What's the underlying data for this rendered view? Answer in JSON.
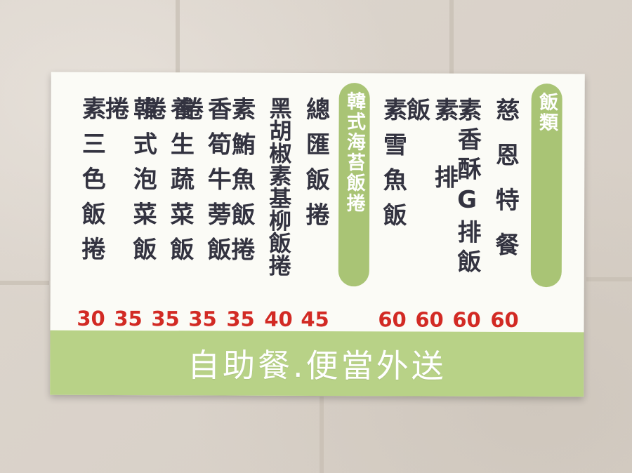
{
  "header_tag": "飯類",
  "subheader_tag": "韓式海苔飯捲",
  "items": [
    {
      "name": "素三色飯捲",
      "price": "30"
    },
    {
      "name": "韓式泡菜飯捲",
      "price": "35"
    },
    {
      "name": "養生蔬菜飯捲",
      "price": "35"
    },
    {
      "name": "香筍牛蒡飯捲",
      "price": "35"
    },
    {
      "name": "素鮪魚飯捲",
      "price": "35"
    },
    {
      "name": "黑胡椒素基柳飯捲",
      "price": "40"
    },
    {
      "name": "總匯飯捲",
      "price": "45"
    },
    {
      "name": "素雪魚飯",
      "price": "60"
    },
    {
      "name": "素排飯",
      "price": "60"
    },
    {
      "name": "素香酥G排飯",
      "price": "60"
    },
    {
      "name": "慈恩特餐",
      "price": "60"
    }
  ],
  "banner": "自助餐.便當外送",
  "colors": {
    "accent_green": "#a9c475",
    "price_red": "#d22a24",
    "text": "#333340"
  }
}
